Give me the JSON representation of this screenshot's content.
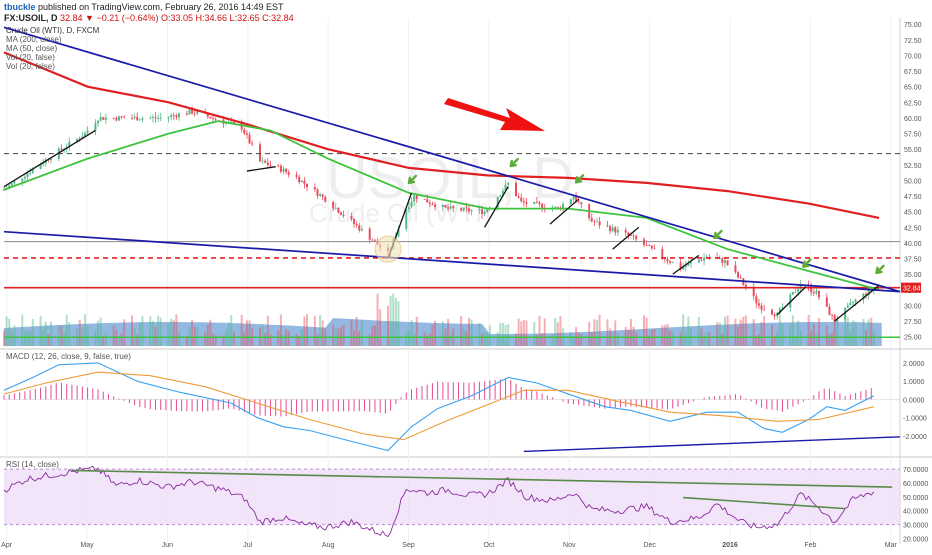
{
  "header": {
    "brand": "tbuckle",
    "published": "published on TradingView.com, February 26, 2016 14:49 EST",
    "symbol": "FX:USOIL, D",
    "quote_main": "32.84 ▼ −0.21 (−0.64%)",
    "quote_ohlc": "O:33.05 H:34.66 L:32.65 C:32.84"
  },
  "legend": {
    "title": "Crude Oil (WTI), D, FXCM",
    "lines": [
      "MA (200, close)",
      "MA (50, close)",
      "Vol (20, false)",
      "Vol (20, false)"
    ]
  },
  "watermark": {
    "big": "USOIL, D",
    "small": "Crude Oil (WTI)"
  },
  "price_label": "32.84",
  "macd_label": "MACD (12, 26, close, 9, false, true)",
  "rsi_label": "RSI (14, close)",
  "colors": {
    "up": "#53b987",
    "down": "#eb4d5c",
    "ma200": "#e02020",
    "ma50": "#3ec33e",
    "trend": "#1b1baa",
    "arrow": "#ee1111",
    "marker": "#5cab37",
    "macd": "#3aa0ef",
    "signal": "#f09a37",
    "hist": "#e44a8f",
    "rsi": "#8a2d9e",
    "rsiband": "#ecdaf7",
    "vol": "#3b7dc8"
  },
  "chart_data": [
    {
      "type": "candlestick",
      "name": "price",
      "title": "Crude Oil (WTI), D, FXCM",
      "ylim": [
        23.5,
        76
      ],
      "y_ticks": [
        "75.00",
        "72.50",
        "70.00",
        "67.50",
        "65.00",
        "62.50",
        "60.00",
        "57.50",
        "55.00",
        "52.50",
        "50.00",
        "47.50",
        "45.00",
        "42.50",
        "40.00",
        "37.50",
        "35.00",
        "32.50",
        "30.00",
        "27.50",
        "25.00"
      ],
      "x_ticks": [
        "Apr",
        "May",
        "Jun",
        "Jul",
        "Aug",
        "Sep",
        "Oct",
        "Nov",
        "Dec",
        "2016",
        "Feb",
        "Mar"
      ],
      "x_range": [
        "2015-03-30",
        "2016-03-07"
      ],
      "anchors_close": [
        [
          "2015-03-30",
          48.5
        ],
        [
          "2015-04-14",
          53
        ],
        [
          "2015-04-30",
          57.5
        ],
        [
          "2015-05-05",
          60
        ],
        [
          "2015-05-15",
          60
        ],
        [
          "2015-05-29",
          60
        ],
        [
          "2015-06-10",
          61
        ],
        [
          "2015-06-29",
          58.5
        ],
        [
          "2015-07-06",
          53
        ],
        [
          "2015-07-13",
          52
        ],
        [
          "2015-07-20",
          50.5
        ],
        [
          "2015-07-31",
          47
        ],
        [
          "2015-08-14",
          42
        ],
        [
          "2015-08-24",
          38.2
        ],
        [
          "2015-08-31",
          45.5
        ],
        [
          "2015-09-03",
          47.5
        ],
        [
          "2015-09-15",
          45.5
        ],
        [
          "2015-09-30",
          45
        ],
        [
          "2015-10-09",
          49.5
        ],
        [
          "2015-10-14",
          46.5
        ],
        [
          "2015-10-28",
          45.5
        ],
        [
          "2015-11-03",
          47.5
        ],
        [
          "2015-11-10",
          43.5
        ],
        [
          "2015-11-25",
          41
        ],
        [
          "2015-12-14",
          36
        ],
        [
          "2015-12-24",
          37.8
        ],
        [
          "2015-12-31",
          37
        ],
        [
          "2016-01-06",
          34
        ],
        [
          "2016-01-13",
          30
        ],
        [
          "2016-01-20",
          28.5
        ],
        [
          "2016-01-29",
          33.5
        ],
        [
          "2016-02-04",
          32
        ],
        [
          "2016-02-11",
          27.5
        ],
        [
          "2016-02-18",
          30.5
        ],
        [
          "2016-02-26",
          32.84
        ]
      ],
      "ma200": [
        [
          "2015-03-30",
          70.5
        ],
        [
          "2015-05-01",
          65
        ],
        [
          "2015-06-01",
          62.5
        ],
        [
          "2015-07-01",
          59
        ],
        [
          "2015-08-01",
          55
        ],
        [
          "2015-09-01",
          52
        ],
        [
          "2015-10-01",
          50.8
        ],
        [
          "2015-11-01",
          50.4
        ],
        [
          "2015-12-01",
          49.6
        ],
        [
          "2016-01-01",
          48.3
        ],
        [
          "2016-02-01",
          46.3
        ],
        [
          "2016-02-28",
          44
        ]
      ],
      "ma50": [
        [
          "2015-03-30",
          48.5
        ],
        [
          "2015-05-01",
          53.5
        ],
        [
          "2015-06-01",
          57.5
        ],
        [
          "2015-06-20",
          59.5
        ],
        [
          "2015-07-10",
          58
        ],
        [
          "2015-08-01",
          53.5
        ],
        [
          "2015-09-01",
          48
        ],
        [
          "2015-10-01",
          45.5
        ],
        [
          "2015-11-01",
          45.5
        ],
        [
          "2015-12-01",
          44
        ],
        [
          "2016-01-01",
          39
        ],
        [
          "2016-02-01",
          35.5
        ],
        [
          "2016-02-28",
          32.5
        ]
      ],
      "horizontal_lines": [
        {
          "y": 54.3,
          "style": "dashed",
          "color": "#444444"
        },
        {
          "y": 40.2,
          "style": "solid",
          "color": "#888888"
        },
        {
          "y": 37.6,
          "style": "dashed",
          "color": "#e02020"
        },
        {
          "y": 32.84,
          "style": "solid",
          "color": "#e02020"
        },
        {
          "y": 24.9,
          "style": "solid",
          "color": "#3ec33e"
        }
      ],
      "trendlines": [
        {
          "from": [
            "2015-03-30",
            74.5
          ],
          "to": [
            "2016-03-07",
            32.2
          ]
        },
        {
          "from": [
            "2015-03-30",
            41.8
          ],
          "to": [
            "2016-03-07",
            32.2
          ]
        }
      ],
      "short_trendlines": [
        {
          "from": [
            "2015-03-30",
            49
          ],
          "to": [
            "2015-05-04",
            58
          ]
        },
        {
          "from": [
            "2015-07-01",
            51.5
          ],
          "to": [
            "2015-07-12",
            52.2
          ]
        },
        {
          "from": [
            "2015-08-24",
            37.5
          ],
          "to": [
            "2015-09-02",
            48
          ]
        },
        {
          "from": [
            "2015-09-30",
            42.5
          ],
          "to": [
            "2015-10-09",
            49
          ]
        },
        {
          "from": [
            "2015-10-25",
            43
          ],
          "to": [
            "2015-11-05",
            47
          ]
        },
        {
          "from": [
            "2015-11-18",
            39
          ],
          "to": [
            "2015-11-28",
            42.5
          ]
        },
        {
          "from": [
            "2015-12-11",
            35
          ],
          "to": [
            "2015-12-21",
            38
          ]
        },
        {
          "from": [
            "2016-01-20",
            28.5
          ],
          "to": [
            "2016-01-31",
            33
          ]
        },
        {
          "from": [
            "2016-02-11",
            27.5
          ],
          "to": [
            "2016-02-28",
            33.2
          ]
        }
      ],
      "markers": [
        [
          "2015-09-01",
          49.6
        ],
        [
          "2015-10-10",
          52.3
        ],
        [
          "2015-11-04",
          49.7
        ],
        [
          "2015-12-27",
          40.8
        ],
        [
          "2016-01-30",
          36.2
        ],
        [
          "2016-02-27",
          35.2
        ]
      ],
      "circle_marker": [
        "2015-08-24",
        39
      ],
      "volume": [
        {
          "date": "2015-08-24",
          "value": 1.0
        },
        {
          "date": "2015-08-27",
          "value": 0.95
        },
        {
          "date": "2015-05-08",
          "value": 0.7
        },
        {
          "date": "2015-08-17",
          "value": 0.6
        }
      ]
    },
    {
      "type": "line",
      "name": "macd",
      "title": "MACD (12, 26, close, 9, false, true)",
      "ylim": [
        -3.1,
        2.6
      ],
      "y_ticks": [
        "2.0000",
        "1.0000",
        "0.0000",
        "-1.0000",
        "-2.0000"
      ],
      "series": [
        {
          "name": "MACD",
          "values": [
            [
              "2015-03-30",
              0.5
            ],
            [
              "2015-04-10",
              1.2
            ],
            [
              "2015-04-20",
              1.9
            ],
            [
              "2015-05-05",
              2.0
            ],
            [
              "2015-05-20",
              1.0
            ],
            [
              "2015-06-05",
              0.4
            ],
            [
              "2015-06-25",
              -0.2
            ],
            [
              "2015-07-05",
              -1.0
            ],
            [
              "2015-07-15",
              -1.5
            ],
            [
              "2015-07-25",
              -1.7
            ],
            [
              "2015-08-10",
              -2.3
            ],
            [
              "2015-08-24",
              -2.8
            ],
            [
              "2015-09-02",
              -1.5
            ],
            [
              "2015-09-12",
              -0.5
            ],
            [
              "2015-09-25",
              0.2
            ],
            [
              "2015-10-09",
              1.2
            ],
            [
              "2015-10-20",
              0.9
            ],
            [
              "2015-11-03",
              0.2
            ],
            [
              "2015-11-15",
              -0.4
            ],
            [
              "2015-11-25",
              -0.6
            ],
            [
              "2015-12-10",
              -1.2
            ],
            [
              "2015-12-24",
              -0.7
            ],
            [
              "2016-01-05",
              -0.7
            ],
            [
              "2016-01-15",
              -1.6
            ],
            [
              "2016-01-22",
              -1.8
            ],
            [
              "2016-02-01",
              -1.1
            ],
            [
              "2016-02-08",
              -0.4
            ],
            [
              "2016-02-15",
              -0.6
            ],
            [
              "2016-02-26",
              0.2
            ]
          ]
        },
        {
          "name": "Signal",
          "values": [
            [
              "2015-03-30",
              0.3
            ],
            [
              "2015-04-15",
              0.9
            ],
            [
              "2015-05-05",
              1.5
            ],
            [
              "2015-05-25",
              1.3
            ],
            [
              "2015-06-15",
              0.7
            ],
            [
              "2015-07-05",
              -0.2
            ],
            [
              "2015-07-25",
              -1.1
            ],
            [
              "2015-08-15",
              -1.9
            ],
            [
              "2015-08-30",
              -2.2
            ],
            [
              "2015-09-15",
              -1.2
            ],
            [
              "2015-10-01",
              -0.3
            ],
            [
              "2015-10-15",
              0.5
            ],
            [
              "2015-11-01",
              0.5
            ],
            [
              "2015-11-20",
              -0.1
            ],
            [
              "2015-12-10",
              -0.7
            ],
            [
              "2015-12-31",
              -0.9
            ],
            [
              "2016-01-20",
              -1.2
            ],
            [
              "2016-02-05",
              -1.1
            ],
            [
              "2016-02-26",
              -0.4
            ]
          ]
        }
      ],
      "trendline": {
        "from": [
          "2015-10-15",
          -2.85
        ],
        "to": [
          "2016-03-07",
          -2.05
        ]
      }
    },
    {
      "type": "line",
      "name": "rsi",
      "title": "RSI (14, close)",
      "ylim": [
        16,
        78
      ],
      "y_ticks": [
        "70.0000",
        "60.0000",
        "50.0000",
        "40.0000",
        "30.0000",
        "20.0000"
      ],
      "band": [
        30,
        70
      ],
      "series": [
        {
          "name": "RSI",
          "values": [
            [
              "2015-03-30",
              55
            ],
            [
              "2015-04-08",
              63
            ],
            [
              "2015-04-18",
              66
            ],
            [
              "2015-04-28",
              69
            ],
            [
              "2015-05-05",
              70
            ],
            [
              "2015-05-12",
              58
            ],
            [
              "2015-05-20",
              62
            ],
            [
              "2015-06-01",
              57
            ],
            [
              "2015-06-10",
              61
            ],
            [
              "2015-06-22",
              55
            ],
            [
              "2015-06-30",
              49
            ],
            [
              "2015-07-06",
              32
            ],
            [
              "2015-07-14",
              35
            ],
            [
              "2015-07-22",
              30
            ],
            [
              "2015-07-31",
              28
            ],
            [
              "2015-08-10",
              32
            ],
            [
              "2015-08-18",
              26
            ],
            [
              "2015-08-24",
              22
            ],
            [
              "2015-08-31",
              56
            ],
            [
              "2015-09-08",
              53
            ],
            [
              "2015-09-16",
              55
            ],
            [
              "2015-09-24",
              51
            ],
            [
              "2015-10-01",
              52
            ],
            [
              "2015-10-09",
              62
            ],
            [
              "2015-10-16",
              50
            ],
            [
              "2015-10-26",
              47
            ],
            [
              "2015-11-03",
              53
            ],
            [
              "2015-11-10",
              41
            ],
            [
              "2015-11-20",
              40
            ],
            [
              "2015-12-01",
              43
            ],
            [
              "2015-12-10",
              32
            ],
            [
              "2015-12-21",
              35
            ],
            [
              "2015-12-28",
              45
            ],
            [
              "2016-01-06",
              32
            ],
            [
              "2016-01-12",
              28
            ],
            [
              "2016-01-20",
              30
            ],
            [
              "2016-01-29",
              52
            ],
            [
              "2016-02-04",
              44
            ],
            [
              "2016-02-11",
              32
            ],
            [
              "2016-02-18",
              48
            ],
            [
              "2016-02-26",
              54
            ]
          ]
        }
      ],
      "trendlines": [
        {
          "from": [
            "2015-04-25",
            69
          ],
          "to": [
            "2016-03-04",
            57
          ]
        },
        {
          "from": [
            "2015-12-15",
            49.5
          ],
          "to": [
            "2016-02-15",
            41.5
          ]
        }
      ]
    }
  ]
}
